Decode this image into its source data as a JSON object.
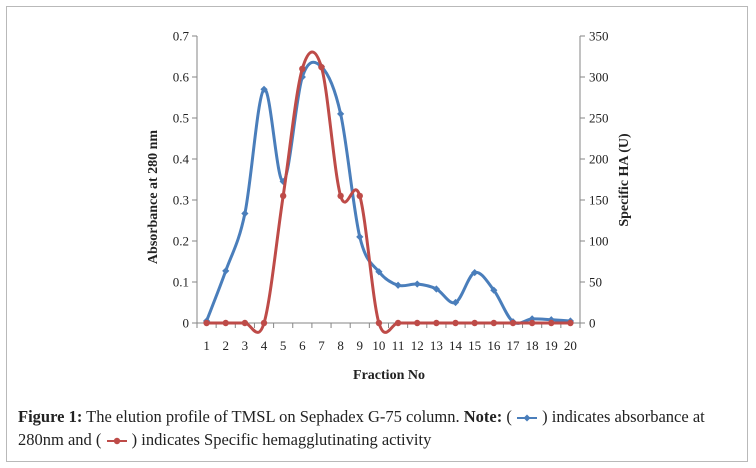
{
  "chart_data": {
    "type": "line",
    "title": "",
    "xlabel": "Fraction No",
    "ylabel": "Absorbance at 280 nm",
    "y2label": "Specific HA (U)",
    "categories": [
      "1",
      "2",
      "3",
      "4",
      "5",
      "6",
      "7",
      "8",
      "9",
      "10",
      "11",
      "12",
      "13",
      "14",
      "15",
      "16",
      "17",
      "18",
      "19",
      "20"
    ],
    "ylim": [
      0,
      0.7
    ],
    "y_ticks": [
      "0",
      "0.1",
      "0.2",
      "0.3",
      "0.4",
      "0.5",
      "0.6",
      "0.7"
    ],
    "y2lim": [
      0,
      350
    ],
    "y2_ticks": [
      "0",
      "50",
      "100",
      "150",
      "200",
      "250",
      "300",
      "350"
    ],
    "series": [
      {
        "name": "Absorbance at 280nm",
        "axis": "left",
        "color": "#4a7ebb",
        "marker": "diamond",
        "values": [
          0.005,
          0.127,
          0.267,
          0.57,
          0.345,
          0.6,
          0.625,
          0.51,
          0.21,
          0.125,
          0.092,
          0.095,
          0.083,
          0.05,
          0.123,
          0.08,
          0.003,
          0.01,
          0.008,
          0.005
        ]
      },
      {
        "name": "Specific hemagglutinating activity",
        "axis": "right",
        "color": "#be4b48",
        "marker": "circle",
        "values": [
          0,
          0,
          0,
          0,
          155,
          310,
          312,
          155,
          155,
          0,
          0,
          0,
          0,
          0,
          0,
          0,
          0,
          0,
          0,
          0
        ]
      }
    ]
  },
  "caption": {
    "label": "Figure 1:",
    "text": " The elution profile of TMSL on Sephadex G-75 column. ",
    "note_label": "Note:",
    "part1": " ( ",
    "part2": " ) indicates absorbance at 280nm and ( ",
    "part3": " ) indicates Specific hemagglutinating activity"
  }
}
